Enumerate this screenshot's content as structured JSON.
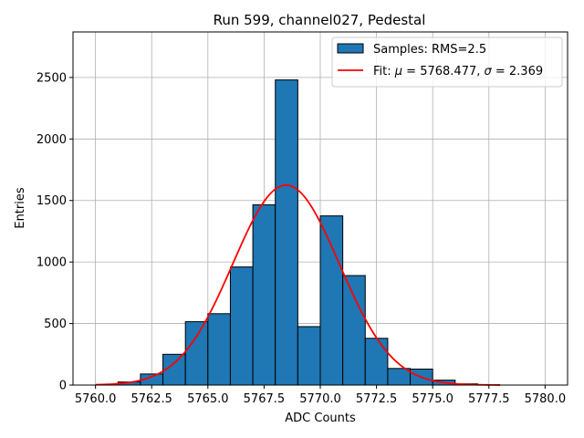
{
  "chart_data": {
    "type": "bar",
    "title": "Run 599, channel027, Pedestal",
    "xlabel": "ADC Counts",
    "ylabel": "Entries",
    "xlim": [
      5759.0,
      5781.0
    ],
    "ylim": [
      0,
      2870
    ],
    "grid": true,
    "legend_position": "top-right",
    "x_ticks": [
      5760.0,
      5762.5,
      5765.0,
      5767.5,
      5770.0,
      5772.5,
      5775.0,
      5777.5,
      5780.0
    ],
    "x_tick_labels": [
      "5760.0",
      "5762.5",
      "5765.0",
      "5767.5",
      "5770.0",
      "5772.5",
      "5775.0",
      "5777.5",
      "5780.0"
    ],
    "y_ticks": [
      0,
      500,
      1000,
      1500,
      2000,
      2500
    ],
    "y_tick_labels": [
      "0",
      "500",
      "1000",
      "1500",
      "2000",
      "2500"
    ],
    "histogram": {
      "name": "Samples: RMS=2.5",
      "color": "#1f77b4",
      "edge_color": "#000000",
      "bins": [
        {
          "x0": 5761.0,
          "x1": 5762.0,
          "value": 25
        },
        {
          "x0": 5762.0,
          "x1": 5763.0,
          "value": 90
        },
        {
          "x0": 5763.0,
          "x1": 5764.0,
          "value": 250
        },
        {
          "x0": 5764.0,
          "x1": 5765.0,
          "value": 515
        },
        {
          "x0": 5765.0,
          "x1": 5766.0,
          "value": 580
        },
        {
          "x0": 5766.0,
          "x1": 5767.0,
          "value": 960
        },
        {
          "x0": 5767.0,
          "x1": 5768.0,
          "value": 1465
        },
        {
          "x0": 5768.0,
          "x1": 5769.0,
          "value": 2480
        },
        {
          "x0": 5769.0,
          "x1": 5770.0,
          "value": 475
        },
        {
          "x0": 5770.0,
          "x1": 5771.0,
          "value": 1375
        },
        {
          "x0": 5771.0,
          "x1": 5772.0,
          "value": 890
        },
        {
          "x0": 5772.0,
          "x1": 5773.0,
          "value": 380
        },
        {
          "x0": 5773.0,
          "x1": 5774.0,
          "value": 135
        },
        {
          "x0": 5774.0,
          "x1": 5775.0,
          "value": 130
        },
        {
          "x0": 5775.0,
          "x1": 5776.0,
          "value": 40
        },
        {
          "x0": 5776.0,
          "x1": 5777.0,
          "value": 10
        }
      ]
    },
    "fit": {
      "name_prefix": "Fit: ",
      "mu_symbol": "μ",
      "mu_text": " = 5768.477, ",
      "sigma_symbol": "σ",
      "sigma_text": " = 2.369",
      "mu": 5768.477,
      "sigma": 2.369,
      "amplitude": 1625,
      "x_range": [
        5760.0,
        5778.0
      ],
      "color": "#ff0000"
    },
    "grid_color": "#b0b0b0"
  }
}
